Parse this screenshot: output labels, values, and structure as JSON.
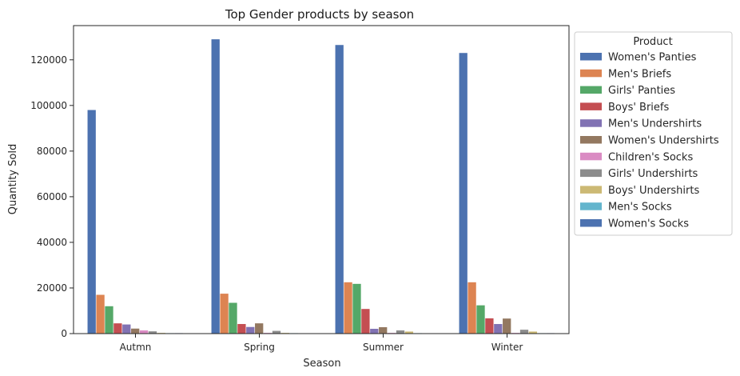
{
  "chart_data": {
    "type": "bar",
    "title": "Top Gender products by season",
    "xlabel": "Season",
    "ylabel": "Quantity Sold",
    "ylim": [
      0,
      135000
    ],
    "yticks": [
      0,
      20000,
      40000,
      60000,
      80000,
      100000,
      120000
    ],
    "ytick_labels": [
      "0",
      "20000",
      "40000",
      "60000",
      "80000",
      "100000",
      "120000"
    ],
    "grid": false,
    "legend_title": "Product",
    "legend_position": "outside-right",
    "categories": [
      "Autmn",
      "Spring",
      "Summer",
      "Winter"
    ],
    "series": [
      {
        "name": "Women's Panties",
        "color": "#4c72b0",
        "values": [
          98000,
          129000,
          126500,
          123000
        ]
      },
      {
        "name": "Men's Briefs",
        "color": "#dd8452",
        "values": [
          17000,
          17500,
          22500,
          22500
        ]
      },
      {
        "name": "Girls' Panties",
        "color": "#55a868",
        "values": [
          12000,
          13500,
          21800,
          12400
        ]
      },
      {
        "name": "Boys' Briefs",
        "color": "#c44e52",
        "values": [
          4500,
          4200,
          10800,
          6700
        ]
      },
      {
        "name": "Men's Undershirts",
        "color": "#8172b3",
        "values": [
          4000,
          2900,
          2100,
          4200
        ]
      },
      {
        "name": "Women's Undershirts",
        "color": "#937860",
        "values": [
          2200,
          4500,
          2800,
          6600
        ]
      },
      {
        "name": "Children's Socks",
        "color": "#da8bc3",
        "values": [
          1400,
          300,
          300,
          300
        ]
      },
      {
        "name": "Girls' Undershirts",
        "color": "#8c8c8c",
        "values": [
          1000,
          1200,
          1400,
          1700
        ]
      },
      {
        "name": "Boys' Undershirts",
        "color": "#ccb974",
        "values": [
          300,
          300,
          900,
          900
        ]
      },
      {
        "name": "Men's Socks",
        "color": "#64b5cd",
        "values": [
          200,
          200,
          200,
          200
        ]
      },
      {
        "name": "Women's Socks",
        "color": "#4c72b0",
        "values": [
          200,
          100,
          100,
          200
        ]
      }
    ]
  }
}
